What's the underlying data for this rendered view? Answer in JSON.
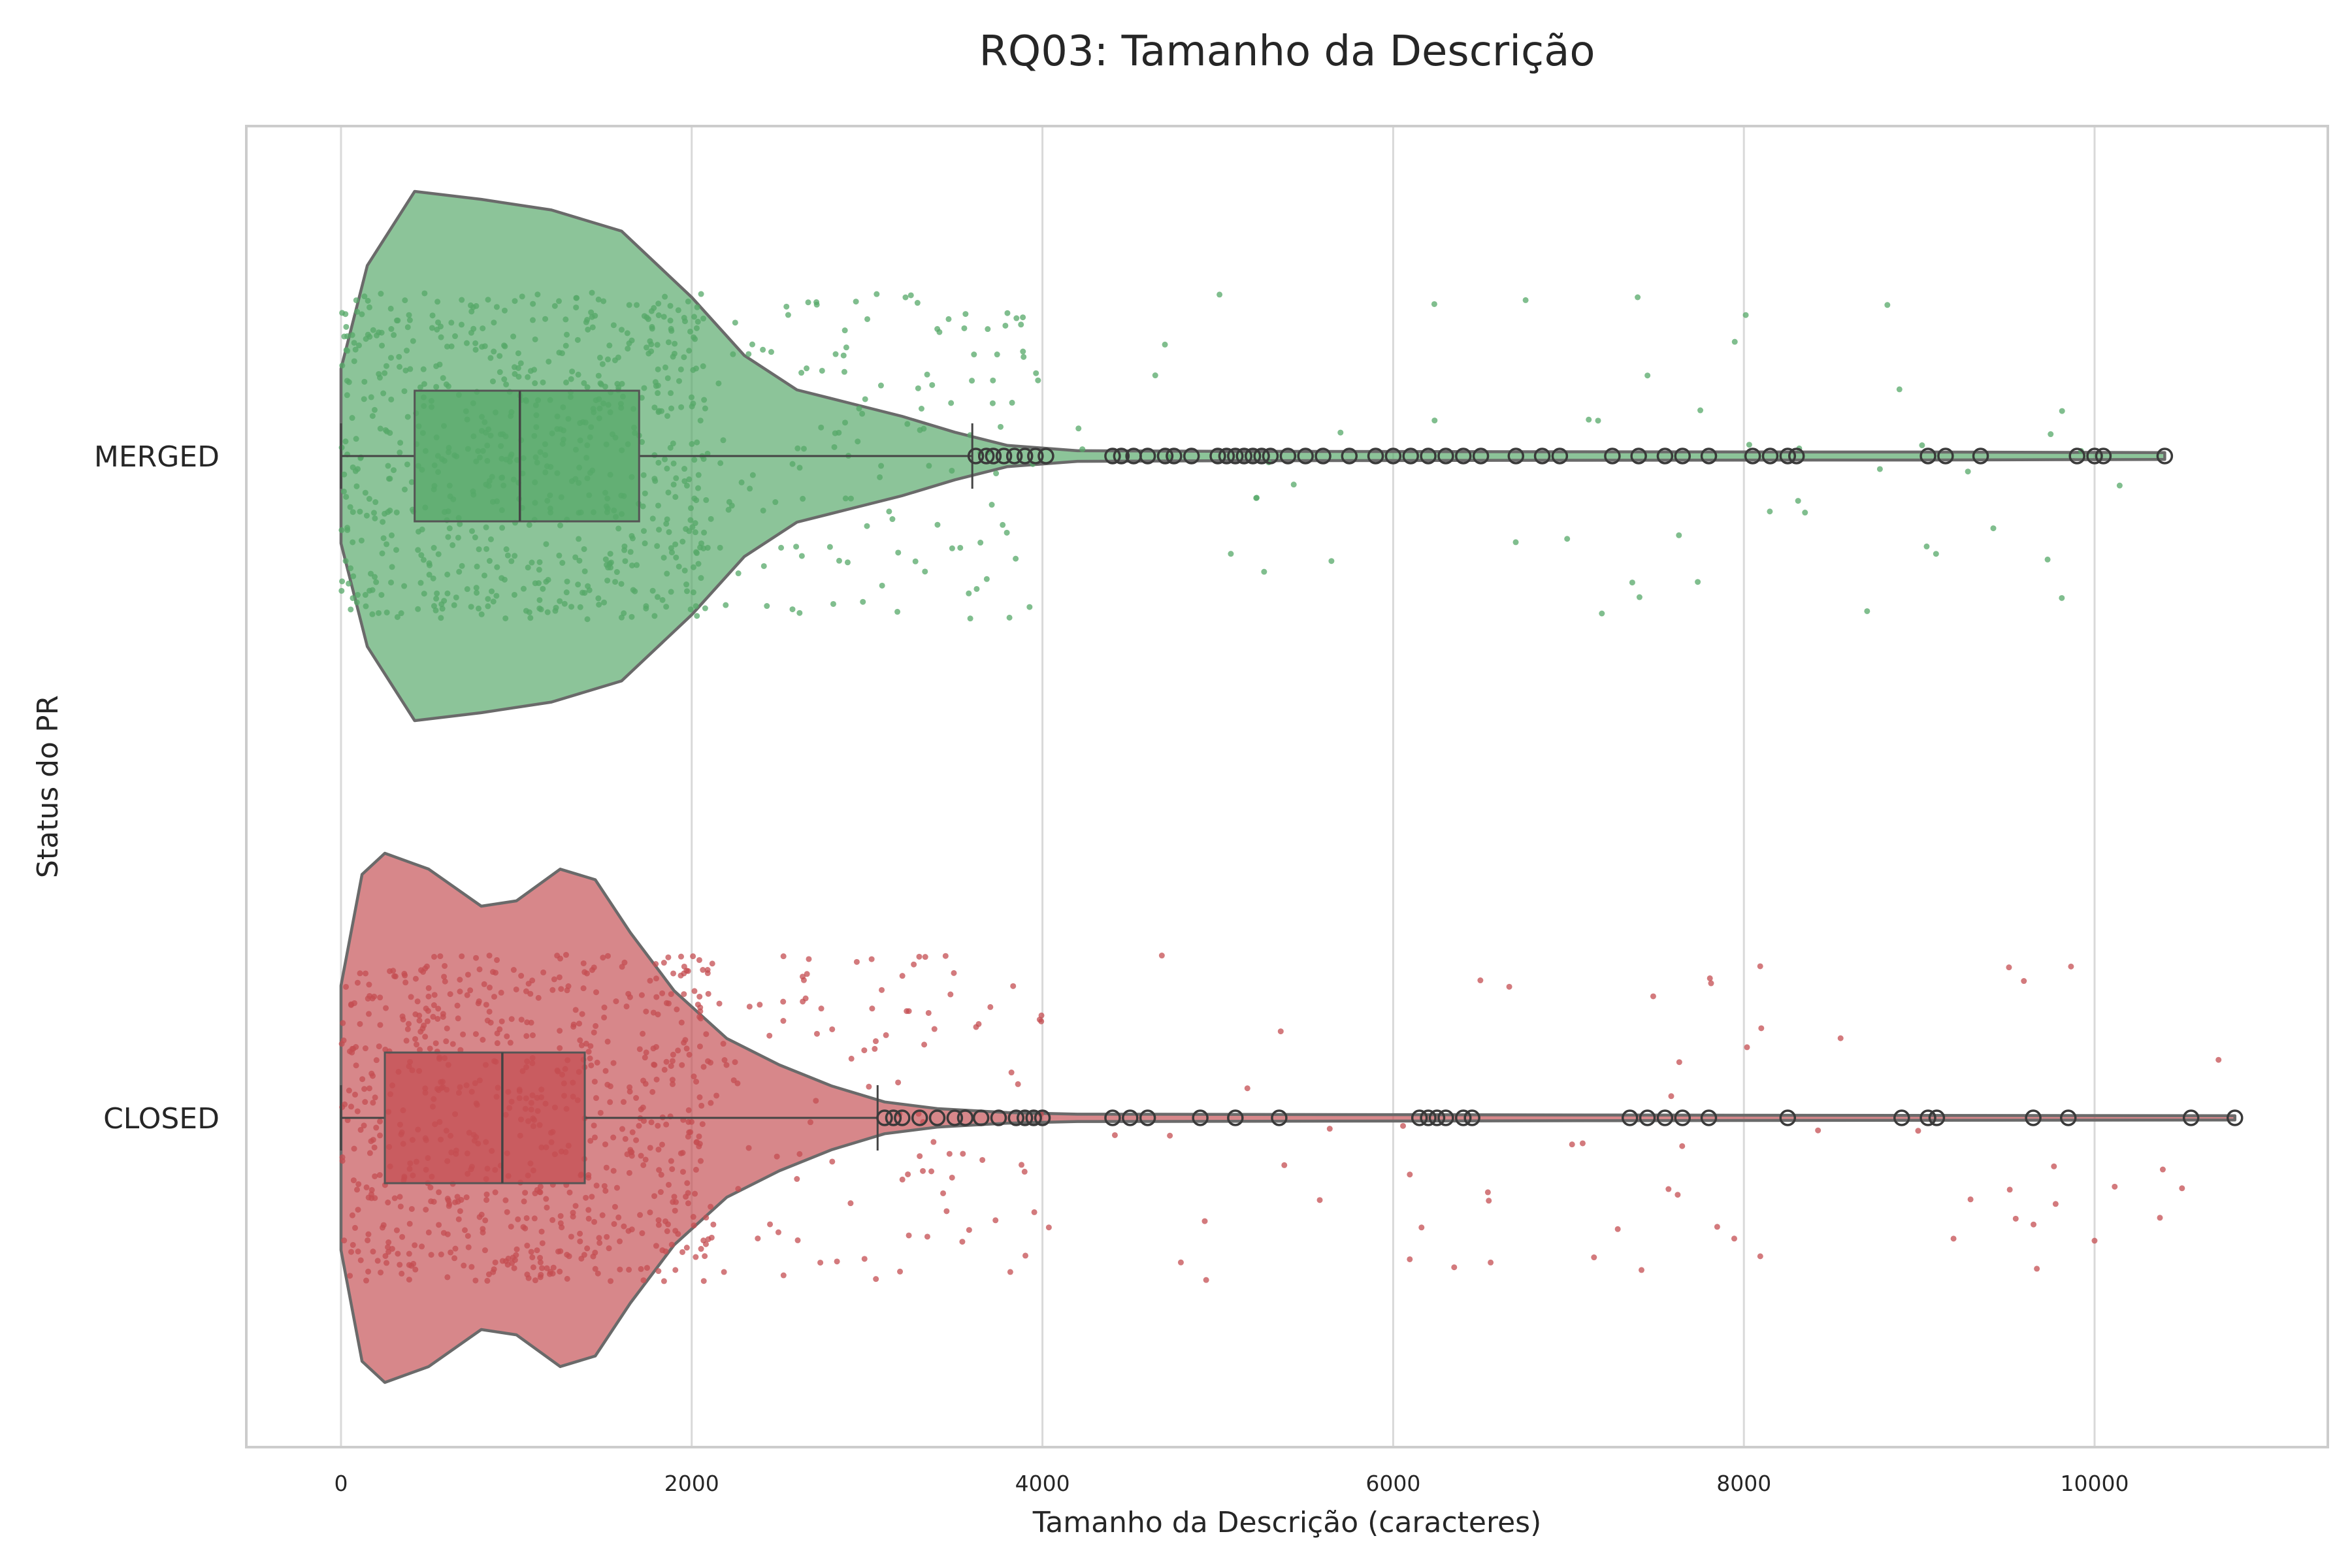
{
  "chart_data": {
    "type": "violin",
    "title": "RQ03: Tamanho da Descrição",
    "xlabel": "Tamanho da Descrição (caracteres)",
    "ylabel": "Status do PR",
    "xlim": [
      -540,
      11330
    ],
    "x_ticks": [
      0,
      2000,
      4000,
      6000,
      8000,
      10000
    ],
    "x_tick_labels": [
      "0",
      "2000",
      "4000",
      "6000",
      "8000",
      "10000"
    ],
    "grid": "vertical",
    "orientation": "horizontal",
    "categories": [
      "MERGED",
      "CLOSED"
    ],
    "series": [
      {
        "name": "MERGED",
        "color": "#55a868",
        "box": {
          "min": 0,
          "q1": 420,
          "median": 1020,
          "q3": 1700,
          "whisker_high": 3600
        },
        "outliers": [
          3620,
          3680,
          3720,
          3780,
          3840,
          3900,
          3960,
          4020,
          4400,
          4450,
          4520,
          4600,
          4700,
          4750,
          4850,
          5000,
          5050,
          5100,
          5150,
          5200,
          5250,
          5300,
          5400,
          5500,
          5600,
          5750,
          5900,
          6000,
          6100,
          6200,
          6300,
          6400,
          6500,
          6700,
          6850,
          6950,
          7250,
          7400,
          7550,
          7650,
          7800,
          8050,
          8150,
          8250,
          8300,
          9050,
          9150,
          9350,
          9900,
          10000,
          10050,
          10400
        ],
        "violin_density": [
          [
            0,
            0.33
          ],
          [
            150,
            0.72
          ],
          [
            420,
            1.0
          ],
          [
            800,
            0.97
          ],
          [
            1200,
            0.93
          ],
          [
            1600,
            0.85
          ],
          [
            2000,
            0.6
          ],
          [
            2300,
            0.38
          ],
          [
            2600,
            0.25
          ],
          [
            2900,
            0.2
          ],
          [
            3200,
            0.15
          ],
          [
            3500,
            0.09
          ],
          [
            3800,
            0.04
          ],
          [
            4200,
            0.02
          ],
          [
            5000,
            0.018
          ],
          [
            7000,
            0.016
          ],
          [
            9000,
            0.015
          ],
          [
            10400,
            0.013
          ]
        ]
      },
      {
        "name": "CLOSED",
        "color": "#c44e52",
        "box": {
          "min": 0,
          "q1": 250,
          "median": 920,
          "q3": 1390,
          "whisker_high": 3060
        },
        "outliers": [
          3100,
          3150,
          3200,
          3300,
          3400,
          3500,
          3560,
          3650,
          3750,
          3850,
          3900,
          3950,
          4000,
          4400,
          4500,
          4600,
          4900,
          5100,
          5350,
          6150,
          6200,
          6250,
          6300,
          6400,
          6450,
          7350,
          7450,
          7550,
          7650,
          7800,
          8250,
          8900,
          9050,
          9100,
          9650,
          9850,
          10550,
          10800
        ],
        "violin_density": [
          [
            0,
            0.5
          ],
          [
            120,
            0.92
          ],
          [
            250,
            1.0
          ],
          [
            500,
            0.94
          ],
          [
            800,
            0.8
          ],
          [
            1000,
            0.82
          ],
          [
            1250,
            0.94
          ],
          [
            1450,
            0.9
          ],
          [
            1650,
            0.7
          ],
          [
            1900,
            0.48
          ],
          [
            2200,
            0.3
          ],
          [
            2500,
            0.2
          ],
          [
            2800,
            0.12
          ],
          [
            3100,
            0.06
          ],
          [
            3400,
            0.035
          ],
          [
            3800,
            0.02
          ],
          [
            4200,
            0.014
          ],
          [
            6000,
            0.012
          ],
          [
            8000,
            0.01
          ],
          [
            10800,
            0.008
          ]
        ]
      }
    ]
  }
}
